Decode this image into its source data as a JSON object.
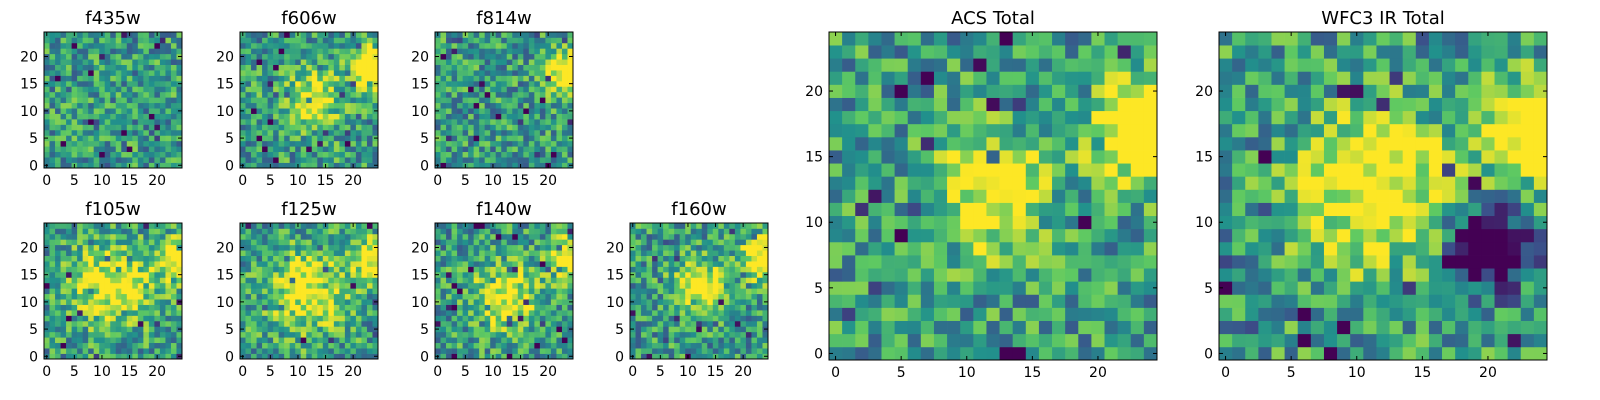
{
  "chart_data": [
    {
      "id": "f435w",
      "type": "heatmap",
      "title": "f435w",
      "size": 25,
      "seed": 11,
      "blobs": [],
      "xticks": [
        "0",
        "5",
        "10",
        "15",
        "20"
      ],
      "yticks": [
        "0",
        "5",
        "10",
        "15",
        "20"
      ],
      "xlim": [
        0,
        24
      ],
      "ylim": [
        0,
        24
      ]
    },
    {
      "id": "f606w",
      "type": "heatmap",
      "title": "f606w",
      "size": 25,
      "seed": 23,
      "blobs": [
        [
          12.5,
          12,
          4,
          0.4
        ],
        [
          23.5,
          18,
          2.5,
          0.8
        ]
      ],
      "xticks": [
        "0",
        "5",
        "10",
        "15",
        "20"
      ],
      "yticks": [
        "0",
        "5",
        "10",
        "15",
        "20"
      ],
      "xlim": [
        0,
        24
      ],
      "ylim": [
        0,
        24
      ]
    },
    {
      "id": "f814w",
      "type": "heatmap",
      "title": "f814w",
      "size": 25,
      "seed": 37,
      "blobs": [
        [
          23.5,
          17,
          2.5,
          0.7
        ]
      ],
      "xticks": [
        "0",
        "5",
        "10",
        "15",
        "20"
      ],
      "yticks": [
        "0",
        "5",
        "10",
        "15",
        "20"
      ],
      "xlim": [
        0,
        24
      ],
      "ylim": [
        0,
        24
      ]
    },
    {
      "id": "f105w",
      "type": "heatmap",
      "title": "f105w",
      "size": 25,
      "seed": 41,
      "blobs": [
        [
          12,
          13,
          5,
          0.5
        ],
        [
          23.5,
          18,
          2.5,
          0.6
        ]
      ],
      "xticks": [
        "0",
        "5",
        "10",
        "15",
        "20"
      ],
      "yticks": [
        "0",
        "5",
        "10",
        "15",
        "20"
      ],
      "xlim": [
        0,
        24
      ],
      "ylim": [
        0,
        24
      ]
    },
    {
      "id": "f125w",
      "type": "heatmap",
      "title": "f125w",
      "size": 25,
      "seed": 53,
      "blobs": [
        [
          12,
          12,
          5,
          0.5
        ],
        [
          23.5,
          18,
          2.5,
          0.6
        ]
      ],
      "xticks": [
        "0",
        "5",
        "10",
        "15",
        "20"
      ],
      "yticks": [
        "0",
        "5",
        "10",
        "15",
        "20"
      ],
      "xlim": [
        0,
        24
      ],
      "ylim": [
        0,
        24
      ]
    },
    {
      "id": "f140w",
      "type": "heatmap",
      "title": "f140w",
      "size": 25,
      "seed": 67,
      "blobs": [
        [
          12,
          11,
          4,
          0.5
        ],
        [
          23.5,
          18,
          2.5,
          0.7
        ]
      ],
      "xticks": [
        "0",
        "5",
        "10",
        "15",
        "20"
      ],
      "yticks": [
        "0",
        "5",
        "10",
        "15",
        "20"
      ],
      "xlim": [
        0,
        24
      ],
      "ylim": [
        0,
        24
      ]
    },
    {
      "id": "f160w",
      "type": "heatmap",
      "title": "f160w",
      "size": 25,
      "seed": 79,
      "blobs": [
        [
          12,
          13,
          3,
          0.6
        ],
        [
          23.5,
          18,
          2.5,
          0.7
        ]
      ],
      "xticks": [
        "0",
        "5",
        "10",
        "15",
        "20"
      ],
      "yticks": [
        "0",
        "5",
        "10",
        "15",
        "20"
      ],
      "xlim": [
        0,
        24
      ],
      "ylim": [
        0,
        24
      ]
    },
    {
      "id": "acs",
      "type": "heatmap",
      "title": "ACS Total",
      "size": 25,
      "seed": 97,
      "blobs": [
        [
          12,
          12,
          3,
          0.55
        ],
        [
          23.5,
          17,
          2.5,
          0.9
        ]
      ],
      "xticks": [
        "0",
        "5",
        "10",
        "15",
        "20"
      ],
      "yticks": [
        "0",
        "5",
        "10",
        "15",
        "20"
      ],
      "xlim": [
        0,
        24
      ],
      "ylim": [
        0,
        24
      ]
    },
    {
      "id": "wfc3",
      "type": "heatmap",
      "title": "WFC3 IR Total",
      "size": 25,
      "seed": 113,
      "blobs": [
        [
          11.5,
          12.5,
          4,
          0.6
        ],
        [
          23.5,
          17,
          2.5,
          0.8
        ],
        [
          20,
          8,
          2,
          -1.0
        ]
      ],
      "xticks": [
        "0",
        "5",
        "10",
        "15",
        "20"
      ],
      "yticks": [
        "0",
        "5",
        "10",
        "15",
        "20"
      ],
      "xlim": [
        0,
        24
      ],
      "ylim": [
        0,
        24
      ]
    }
  ],
  "colormap": [
    "#440154",
    "#3b528b",
    "#21918c",
    "#5ec962",
    "#fde725"
  ]
}
